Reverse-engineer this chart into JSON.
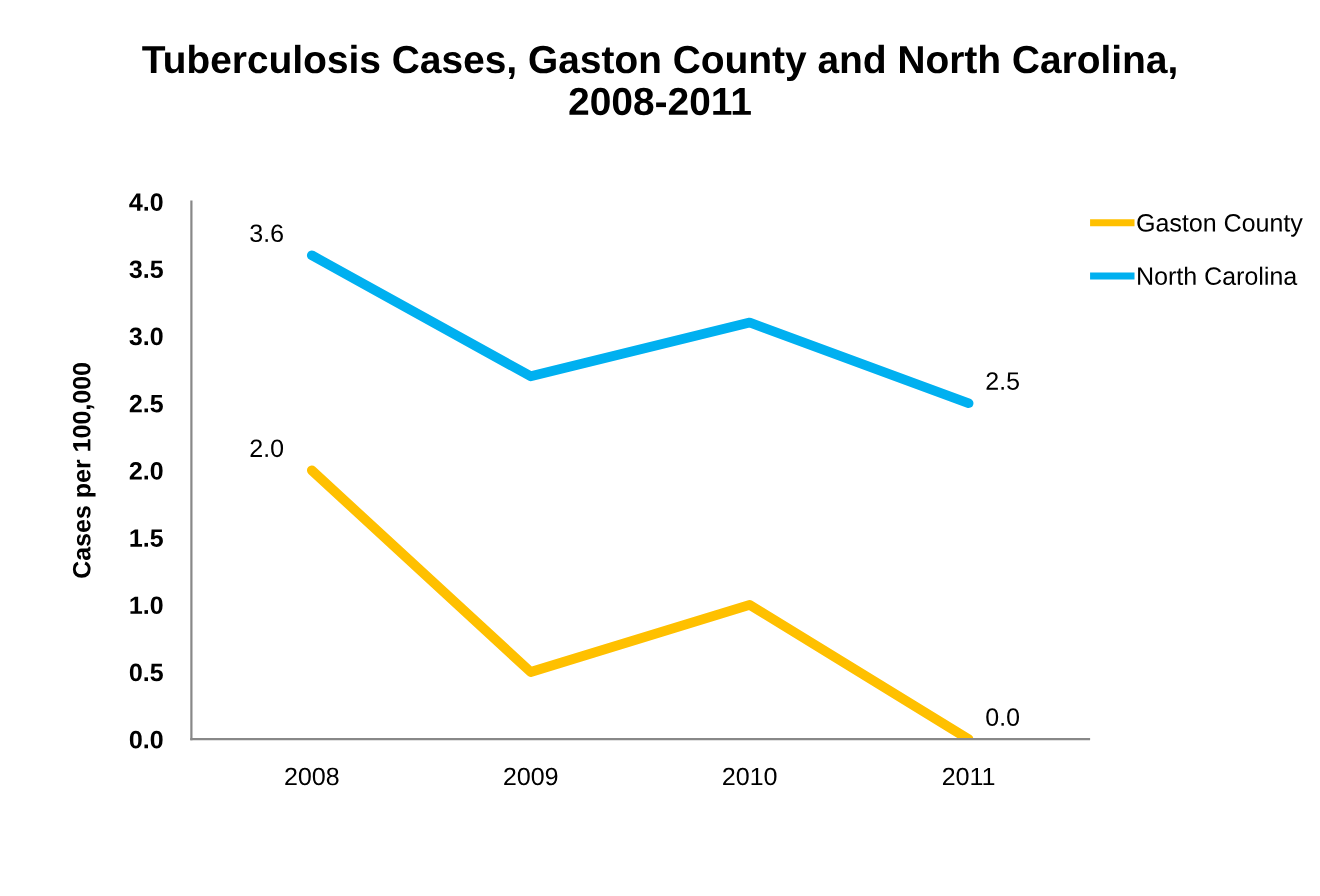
{
  "chart_data": {
    "type": "line",
    "title": "Tuberculosis Cases, Gaston County and North Carolina,\n2008-2011",
    "ylabel": "Cases per 100,000",
    "categories": [
      "2008",
      "2009",
      "2010",
      "2011"
    ],
    "series": [
      {
        "name": "Gaston County",
        "color": "#ffc000",
        "values": [
          2.0,
          0.5,
          1.0,
          0.0
        ],
        "value_labels": [
          "2.0",
          null,
          null,
          "0.0"
        ]
      },
      {
        "name": "North Carolina",
        "color": "#00b0f0",
        "values": [
          3.6,
          2.7,
          3.1,
          2.5
        ],
        "value_labels": [
          "3.6",
          null,
          null,
          "2.5"
        ]
      }
    ],
    "ylim": [
      0,
      4
    ],
    "yticks": [
      {
        "value": 0,
        "label": "0.0"
      },
      {
        "value": 0.5,
        "label": "0.5"
      },
      {
        "value": 1,
        "label": "1.0"
      },
      {
        "value": 1.5,
        "label": "1.5"
      },
      {
        "value": 2,
        "label": "2.0"
      },
      {
        "value": 2.5,
        "label": "2.5"
      },
      {
        "value": 3,
        "label": "3.0"
      },
      {
        "value": 3.5,
        "label": "3.5"
      },
      {
        "value": 4,
        "label": "4.0"
      }
    ],
    "grid": false,
    "legend": "top right",
    "marker": "none",
    "line_style": "solid"
  }
}
